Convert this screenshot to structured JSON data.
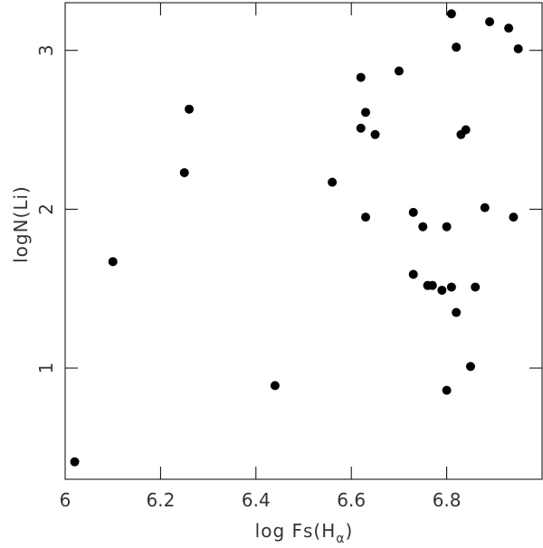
{
  "chart_data": {
    "type": "scatter",
    "xlabel": {
      "text": "log Fs(H",
      "sub": "α",
      "end": ")"
    },
    "ylabel": "logN(Li)",
    "xlim": [
      6,
      7
    ],
    "ylim": [
      0.3,
      3.3
    ],
    "xticks": [
      6,
      6.2,
      6.4,
      6.6,
      6.8
    ],
    "yticks": [
      1,
      2,
      3
    ],
    "color": "#000000",
    "x": [
      6.02,
      6.1,
      6.25,
      6.26,
      6.44,
      6.56,
      6.62,
      6.62,
      6.63,
      6.63,
      6.65,
      6.7,
      6.73,
      6.73,
      6.75,
      6.76,
      6.77,
      6.79,
      6.8,
      6.81,
      6.81,
      6.82,
      6.82,
      6.8,
      6.83,
      6.84,
      6.85,
      6.86,
      6.88,
      6.89,
      6.93,
      6.94,
      6.95
    ],
    "values": [
      0.41,
      1.67,
      2.23,
      2.63,
      0.89,
      2.17,
      2.83,
      2.51,
      2.61,
      1.95,
      2.47,
      2.87,
      1.59,
      1.98,
      1.89,
      1.52,
      1.52,
      1.49,
      1.89,
      1.51,
      3.23,
      3.02,
      1.35,
      0.86,
      2.47,
      2.5,
      1.01,
      1.51,
      2.01,
      3.18,
      3.14,
      1.95,
      3.01
    ]
  }
}
